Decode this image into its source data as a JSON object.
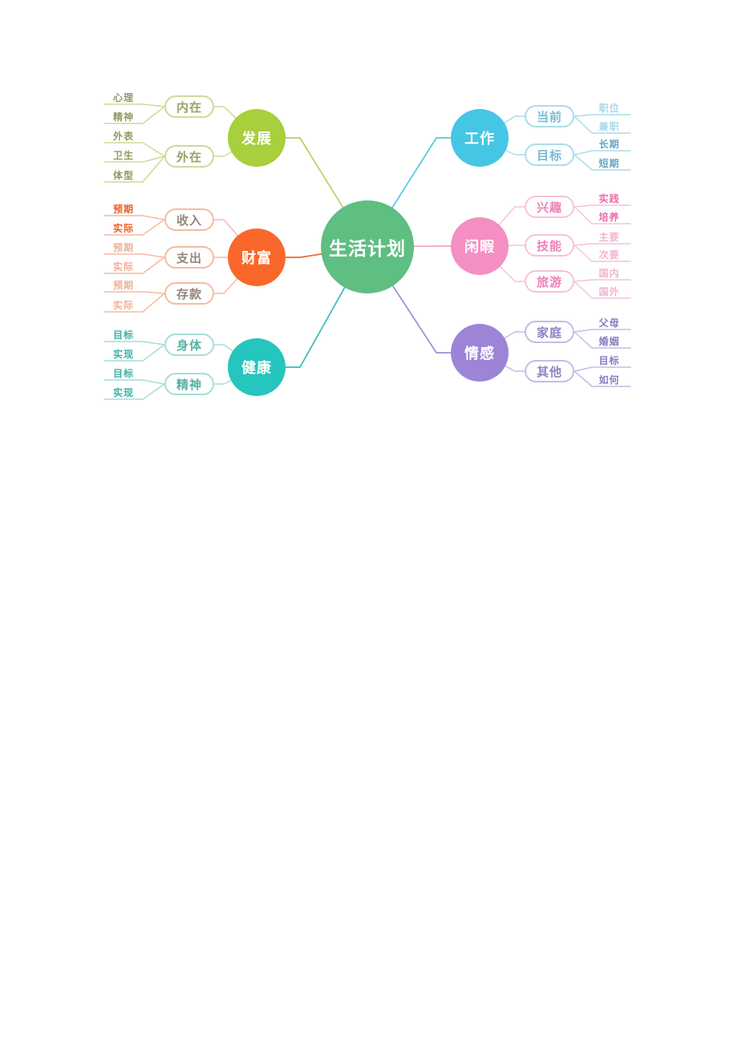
{
  "app": {
    "type": "mindmap",
    "background_color": "#ffffff"
  },
  "center": {
    "label": "生活计划",
    "color": "#5fbe82",
    "text_color": "#ffffff"
  },
  "branches": [
    {
      "label": "发展",
      "side": "left",
      "color": "#a8cf3c",
      "link_color": "#b6d164",
      "node_border": "#cdda9a",
      "node_text": "#93a368",
      "leaf_line": "#cdda9a",
      "leaf_colors": {
        "strong": "#8d9c64",
        "light": "#aab97f"
      },
      "children": [
        {
          "label": "内在",
          "leaves": [
            {
              "label": "心理",
              "tone": "strong"
            },
            {
              "label": "精神",
              "tone": "strong"
            }
          ]
        },
        {
          "label": "外在",
          "leaves": [
            {
              "label": "外表",
              "tone": "strong"
            },
            {
              "label": "卫生",
              "tone": "strong"
            },
            {
              "label": "体型",
              "tone": "strong"
            }
          ]
        }
      ]
    },
    {
      "label": "财富",
      "side": "left",
      "color": "#f9682a",
      "link_color": "#e56a35",
      "node_border": "#f4bba2",
      "node_text": "#97857a",
      "leaf_line": "#f4bba2",
      "leaf_colors": {
        "strong": "#e8612c",
        "light": "#f2b197"
      },
      "children": [
        {
          "label": "收入",
          "leaves": [
            {
              "label": "预期",
              "tone": "strong"
            },
            {
              "label": "实际",
              "tone": "strong"
            }
          ]
        },
        {
          "label": "支出",
          "leaves": [
            {
              "label": "预期",
              "tone": "light"
            },
            {
              "label": "实际",
              "tone": "light"
            }
          ]
        },
        {
          "label": "存款",
          "leaves": [
            {
              "label": "预期",
              "tone": "light"
            },
            {
              "label": "实际",
              "tone": "light"
            }
          ]
        }
      ]
    },
    {
      "label": "健康",
      "side": "left",
      "color": "#26c5bd",
      "link_color": "#35bdb5",
      "node_border": "#a5ded8",
      "node_text": "#58b2a7",
      "leaf_line": "#a5ded8",
      "leaf_colors": {
        "strong": "#3fb2a6",
        "light": "#8fd2ca"
      },
      "children": [
        {
          "label": "身体",
          "leaves": [
            {
              "label": "目标",
              "tone": "strong"
            },
            {
              "label": "实现",
              "tone": "strong"
            }
          ]
        },
        {
          "label": "精神",
          "leaves": [
            {
              "label": "目标",
              "tone": "strong"
            },
            {
              "label": "实现",
              "tone": "strong"
            }
          ]
        }
      ]
    },
    {
      "label": "工作",
      "side": "right",
      "color": "#45c6e4",
      "link_color": "#55c6e2",
      "node_border": "#abdcec",
      "node_text": "#74bcd4",
      "leaf_line": "#abdcec",
      "leaf_colors": {
        "strong": "#68a6c2",
        "light": "#a6d8e9"
      },
      "children": [
        {
          "label": "当前",
          "leaves": [
            {
              "label": "职位",
              "tone": "light"
            },
            {
              "label": "兼职",
              "tone": "light"
            }
          ]
        },
        {
          "label": "目标",
          "leaves": [
            {
              "label": "长期",
              "tone": "strong"
            },
            {
              "label": "短期",
              "tone": "strong"
            }
          ]
        }
      ]
    },
    {
      "label": "闲暇",
      "side": "right",
      "color": "#f38fc3",
      "link_color": "#f2a2cc",
      "node_border": "#f7c2da",
      "node_text": "#ee82b9",
      "leaf_line": "#f7c2da",
      "leaf_colors": {
        "strong": "#e96cab",
        "light": "#f2b4d2"
      },
      "children": [
        {
          "label": "兴趣",
          "leaves": [
            {
              "label": "实践",
              "tone": "strong"
            },
            {
              "label": "培养",
              "tone": "strong"
            }
          ]
        },
        {
          "label": "技能",
          "leaves": [
            {
              "label": "主要",
              "tone": "light"
            },
            {
              "label": "次要",
              "tone": "light"
            }
          ]
        },
        {
          "label": "旅游",
          "leaves": [
            {
              "label": "国内",
              "tone": "light"
            },
            {
              "label": "国外",
              "tone": "light"
            }
          ]
        }
      ]
    },
    {
      "label": "情感",
      "side": "right",
      "color": "#9c84d7",
      "link_color": "#9d8dd1",
      "node_border": "#c6bbe5",
      "node_text": "#9181c5",
      "leaf_line": "#c6bbe5",
      "leaf_colors": {
        "strong": "#8b7ac2",
        "light": "#b4a7da"
      },
      "children": [
        {
          "label": "家庭",
          "leaves": [
            {
              "label": "父母",
              "tone": "strong"
            },
            {
              "label": "婚姻",
              "tone": "strong"
            }
          ]
        },
        {
          "label": "其他",
          "leaves": [
            {
              "label": "目标",
              "tone": "strong"
            },
            {
              "label": "如何",
              "tone": "strong"
            }
          ]
        }
      ]
    }
  ]
}
